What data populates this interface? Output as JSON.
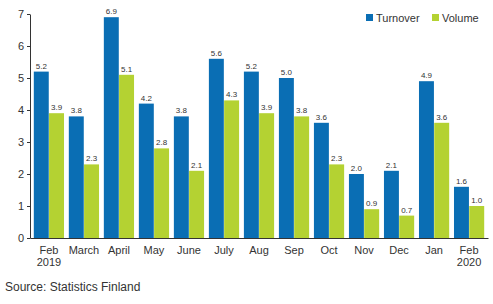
{
  "chart_data": {
    "type": "bar",
    "categories": [
      "Feb\n2019",
      "March",
      "April",
      "May",
      "June",
      "July",
      "Aug",
      "Sep",
      "Oct",
      "Nov",
      "Dec",
      "Jan",
      "Feb\n2020"
    ],
    "series": [
      {
        "name": "Turnover",
        "color": "#0a6eb4",
        "values": [
          5.2,
          3.8,
          6.9,
          4.2,
          3.8,
          5.6,
          5.2,
          5.0,
          3.6,
          2.0,
          2.1,
          4.9,
          1.6
        ],
        "value_labels": [
          "5.2",
          "3.8",
          "6.9",
          "4.2",
          "3.8",
          "5.6",
          "5.2",
          "5.0",
          "3.6",
          "2.0",
          "2.1",
          "4.9",
          "1.6"
        ]
      },
      {
        "name": "Volume",
        "color": "#b4d232",
        "values": [
          3.9,
          2.3,
          5.1,
          2.8,
          2.1,
          4.3,
          3.9,
          3.8,
          2.3,
          0.9,
          0.7,
          3.6,
          1.0
        ],
        "value_labels": [
          "3.9",
          "2.3",
          "5.1",
          "2.8",
          "2.1",
          "4.3",
          "3.9",
          "3.8",
          "2.3",
          "0.9",
          "0.7",
          "3.6",
          "1.0"
        ]
      }
    ],
    "ylim": [
      0,
      7
    ],
    "yticks": [
      0,
      1,
      2,
      3,
      4,
      5,
      6,
      7
    ],
    "grid": false,
    "legend": "upper right",
    "data_labels": true,
    "annotations": [
      "Source: Statistics Finland"
    ]
  }
}
